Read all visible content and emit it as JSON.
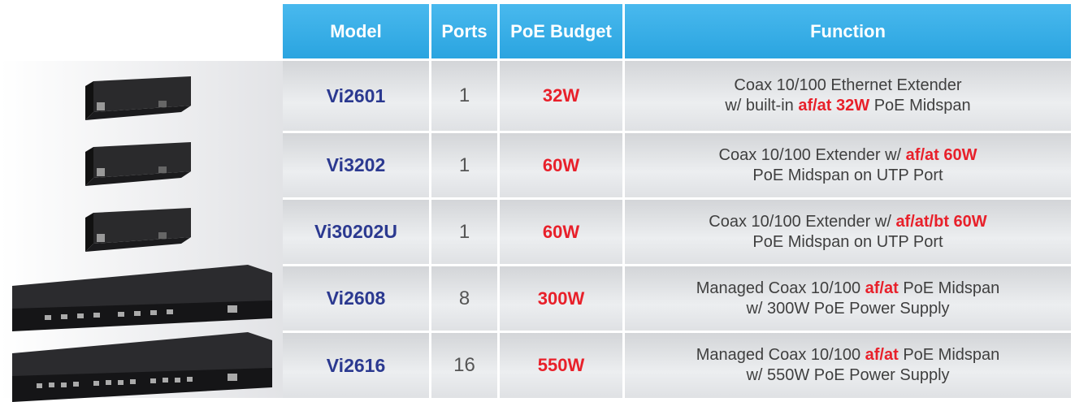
{
  "header": {
    "columns": [
      "Model",
      "Ports",
      "PoE Budget",
      "Function"
    ]
  },
  "table": {
    "rows": [
      {
        "model": "Vi2601",
        "ports": 1,
        "poe_budget": "32W",
        "function": [
          [
            {
              "text": "Coax 10/100 Ethernet Extender",
              "highlight": false
            }
          ],
          [
            {
              "text": "w/ built-in ",
              "highlight": false
            },
            {
              "text": "af/at 32W",
              "highlight": true
            },
            {
              "text": " PoE Midspan",
              "highlight": false
            }
          ]
        ]
      },
      {
        "model": "Vi3202",
        "ports": 1,
        "poe_budget": "60W",
        "function": [
          [
            {
              "text": "Coax 10/100 Extender w/ ",
              "highlight": false
            },
            {
              "text": "af/at 60W",
              "highlight": true
            }
          ],
          [
            {
              "text": "PoE Midspan on UTP Port",
              "highlight": false
            }
          ]
        ]
      },
      {
        "model": "Vi30202U",
        "ports": 1,
        "poe_budget": "60W",
        "function": [
          [
            {
              "text": "Coax 10/100 Extender w/ ",
              "highlight": false
            },
            {
              "text": "af/at/bt 60W",
              "highlight": true
            }
          ],
          [
            {
              "text": "PoE Midspan on UTP Port",
              "highlight": false
            }
          ]
        ]
      },
      {
        "model": "Vi2608",
        "ports": 8,
        "poe_budget": "300W",
        "function": [
          [
            {
              "text": "Managed Coax 10/100 ",
              "highlight": false
            },
            {
              "text": "af/at",
              "highlight": true
            },
            {
              "text": " PoE Midspan",
              "highlight": false
            }
          ],
          [
            {
              "text": "w/ 300W PoE Power Supply",
              "highlight": false
            }
          ]
        ]
      },
      {
        "model": "Vi2616",
        "ports": 16,
        "poe_budget": "550W",
        "function": [
          [
            {
              "text": "Managed Coax 10/100 ",
              "highlight": false
            },
            {
              "text": "af/at",
              "highlight": true
            },
            {
              "text": " PoE Midspan",
              "highlight": false
            }
          ],
          [
            {
              "text": "w/ 550W PoE Power Supply",
              "highlight": false
            }
          ]
        ]
      }
    ]
  }
}
